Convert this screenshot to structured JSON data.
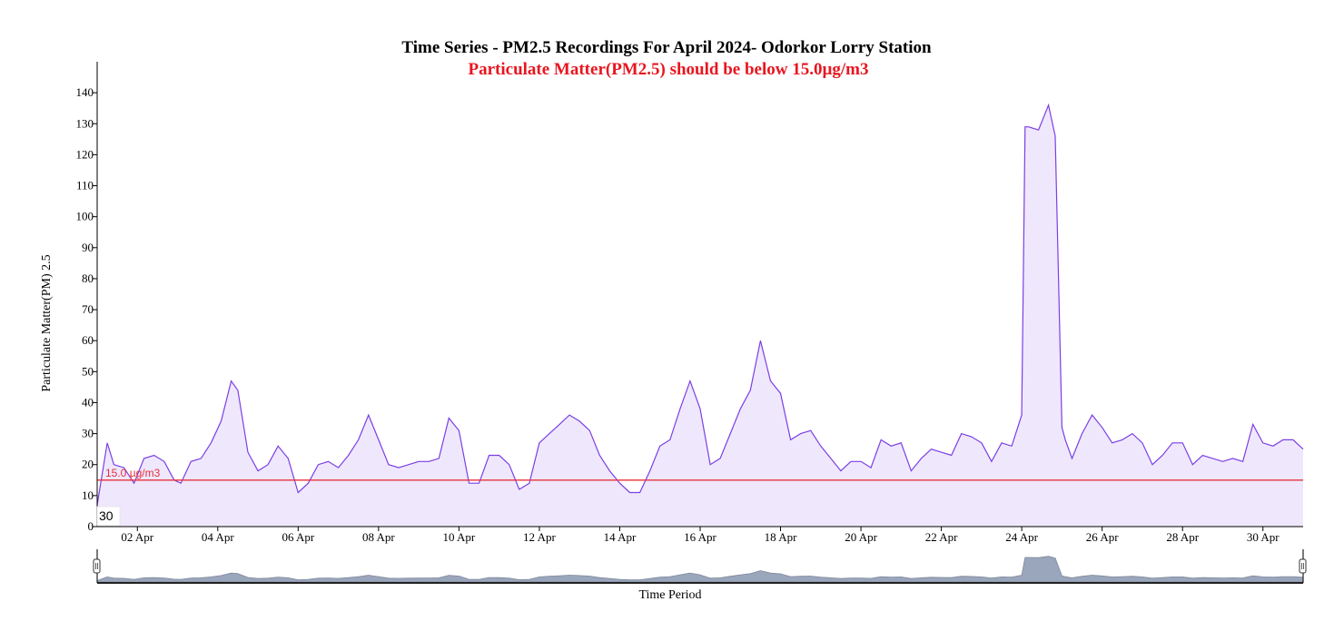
{
  "chart_data": {
    "type": "area",
    "title": "Time Series - PM2.5 Recordings For April 2024- Odorkor Lorry Station",
    "subtitle": "Particulate Matter(PM2.5) should be below 15.0µg/m3",
    "xlabel": "Time Period",
    "ylabel": "Particulate Matter(PM) 2.5",
    "ylim": [
      0,
      150
    ],
    "xlim": [
      "2024-04-01",
      "2024-05-01"
    ],
    "yticks": [
      0,
      10,
      20,
      30,
      40,
      50,
      60,
      70,
      80,
      90,
      100,
      110,
      120,
      130,
      140
    ],
    "xticks": [
      {
        "date": "2024-04-02",
        "label": "02 Apr"
      },
      {
        "date": "2024-04-04",
        "label": "04 Apr"
      },
      {
        "date": "2024-04-06",
        "label": "06 Apr"
      },
      {
        "date": "2024-04-08",
        "label": "08 Apr"
      },
      {
        "date": "2024-04-10",
        "label": "10 Apr"
      },
      {
        "date": "2024-04-12",
        "label": "12 Apr"
      },
      {
        "date": "2024-04-14",
        "label": "14 Apr"
      },
      {
        "date": "2024-04-16",
        "label": "16 Apr"
      },
      {
        "date": "2024-04-18",
        "label": "18 Apr"
      },
      {
        "date": "2024-04-20",
        "label": "20 Apr"
      },
      {
        "date": "2024-04-22",
        "label": "22 Apr"
      },
      {
        "date": "2024-04-24",
        "label": "24 Apr"
      },
      {
        "date": "2024-04-26",
        "label": "26 Apr"
      },
      {
        "date": "2024-04-28",
        "label": "28 Apr"
      },
      {
        "date": "2024-04-30",
        "label": "30 Apr"
      }
    ],
    "threshold": {
      "value": 15.0,
      "label": "15.0 µg/m3",
      "color": "#e8303a"
    },
    "grid": false,
    "line_color": "#7b3fe4",
    "fill_color": "#efe8fd",
    "navigator": {
      "shown": true,
      "fill_color": "#9aa6bb"
    },
    "corner_label": "30",
    "series": [
      {
        "name": "PM2.5",
        "x": [
          "2024-04-01 00:00",
          "2024-04-01 06:00",
          "2024-04-01 10:00",
          "2024-04-01 16:00",
          "2024-04-01 22:00",
          "2024-04-02 04:00",
          "2024-04-02 10:00",
          "2024-04-02 16:00",
          "2024-04-02 22:00",
          "2024-04-03 02:00",
          "2024-04-03 08:00",
          "2024-04-03 14:00",
          "2024-04-03 20:00",
          "2024-04-04 02:00",
          "2024-04-04 08:00",
          "2024-04-04 12:00",
          "2024-04-04 18:00",
          "2024-04-05 00:00",
          "2024-04-05 06:00",
          "2024-04-05 12:00",
          "2024-04-05 18:00",
          "2024-04-06 00:00",
          "2024-04-06 06:00",
          "2024-04-06 12:00",
          "2024-04-06 18:00",
          "2024-04-07 00:00",
          "2024-04-07 06:00",
          "2024-04-07 12:00",
          "2024-04-07 18:00",
          "2024-04-08 00:00",
          "2024-04-08 06:00",
          "2024-04-08 12:00",
          "2024-04-08 18:00",
          "2024-04-09 00:00",
          "2024-04-09 06:00",
          "2024-04-09 12:00",
          "2024-04-09 18:00",
          "2024-04-10 00:00",
          "2024-04-10 06:00",
          "2024-04-10 12:00",
          "2024-04-10 18:00",
          "2024-04-11 00:00",
          "2024-04-11 06:00",
          "2024-04-11 12:00",
          "2024-04-11 18:00",
          "2024-04-12 00:00",
          "2024-04-12 06:00",
          "2024-04-12 12:00",
          "2024-04-12 18:00",
          "2024-04-13 00:00",
          "2024-04-13 06:00",
          "2024-04-13 12:00",
          "2024-04-13 18:00",
          "2024-04-14 00:00",
          "2024-04-14 06:00",
          "2024-04-14 12:00",
          "2024-04-14 18:00",
          "2024-04-15 00:00",
          "2024-04-15 06:00",
          "2024-04-15 12:00",
          "2024-04-15 18:00",
          "2024-04-16 00:00",
          "2024-04-16 06:00",
          "2024-04-16 12:00",
          "2024-04-16 18:00",
          "2024-04-17 00:00",
          "2024-04-17 06:00",
          "2024-04-17 12:00",
          "2024-04-17 18:00",
          "2024-04-18 00:00",
          "2024-04-18 06:00",
          "2024-04-18 12:00",
          "2024-04-18 18:00",
          "2024-04-19 00:00",
          "2024-04-19 06:00",
          "2024-04-19 12:00",
          "2024-04-19 18:00",
          "2024-04-20 00:00",
          "2024-04-20 06:00",
          "2024-04-20 12:00",
          "2024-04-20 18:00",
          "2024-04-21 00:00",
          "2024-04-21 06:00",
          "2024-04-21 12:00",
          "2024-04-21 18:00",
          "2024-04-22 00:00",
          "2024-04-22 06:00",
          "2024-04-22 12:00",
          "2024-04-22 18:00",
          "2024-04-23 00:00",
          "2024-04-23 06:00",
          "2024-04-23 12:00",
          "2024-04-23 18:00",
          "2024-04-24 00:00",
          "2024-04-24 02:00",
          "2024-04-24 04:00",
          "2024-04-24 10:00",
          "2024-04-24 16:00",
          "2024-04-24 20:00",
          "2024-04-25 00:00",
          "2024-04-25 02:00",
          "2024-04-25 04:00",
          "2024-04-25 06:00",
          "2024-04-25 12:00",
          "2024-04-25 18:00",
          "2024-04-26 00:00",
          "2024-04-26 06:00",
          "2024-04-26 12:00",
          "2024-04-26 18:00",
          "2024-04-27 00:00",
          "2024-04-27 06:00",
          "2024-04-27 12:00",
          "2024-04-27 18:00",
          "2024-04-28 00:00",
          "2024-04-28 06:00",
          "2024-04-28 12:00",
          "2024-04-28 18:00",
          "2024-04-29 00:00",
          "2024-04-29 06:00",
          "2024-04-29 12:00",
          "2024-04-29 18:00",
          "2024-04-30 00:00",
          "2024-04-30 06:00",
          "2024-04-30 12:00",
          "2024-04-30 18:00",
          "2024-05-01 00:00"
        ],
        "values": [
          7,
          27,
          20,
          19,
          14,
          22,
          23,
          21,
          15,
          14,
          21,
          22,
          27,
          34,
          47,
          44,
          24,
          18,
          20,
          26,
          22,
          11,
          14,
          20,
          21,
          19,
          23,
          28,
          36,
          28,
          20,
          19,
          20,
          21,
          21,
          22,
          35,
          31,
          14,
          14,
          23,
          23,
          20,
          12,
          14,
          27,
          30,
          33,
          36,
          34,
          31,
          23,
          18,
          14,
          11,
          11,
          18,
          26,
          28,
          38,
          47,
          38,
          20,
          22,
          30,
          38,
          44,
          60,
          47,
          43,
          28,
          30,
          31,
          26,
          22,
          18,
          21,
          21,
          19,
          28,
          26,
          27,
          18,
          22,
          25,
          24,
          23,
          30,
          29,
          27,
          21,
          27,
          26,
          36,
          129,
          129,
          128,
          136,
          126,
          32,
          28,
          25,
          22,
          30,
          36,
          32,
          27,
          28,
          30,
          27,
          20,
          23,
          27,
          27,
          20,
          23,
          22,
          21,
          22,
          21,
          33,
          27,
          26,
          28,
          28,
          25
        ]
      }
    ]
  }
}
